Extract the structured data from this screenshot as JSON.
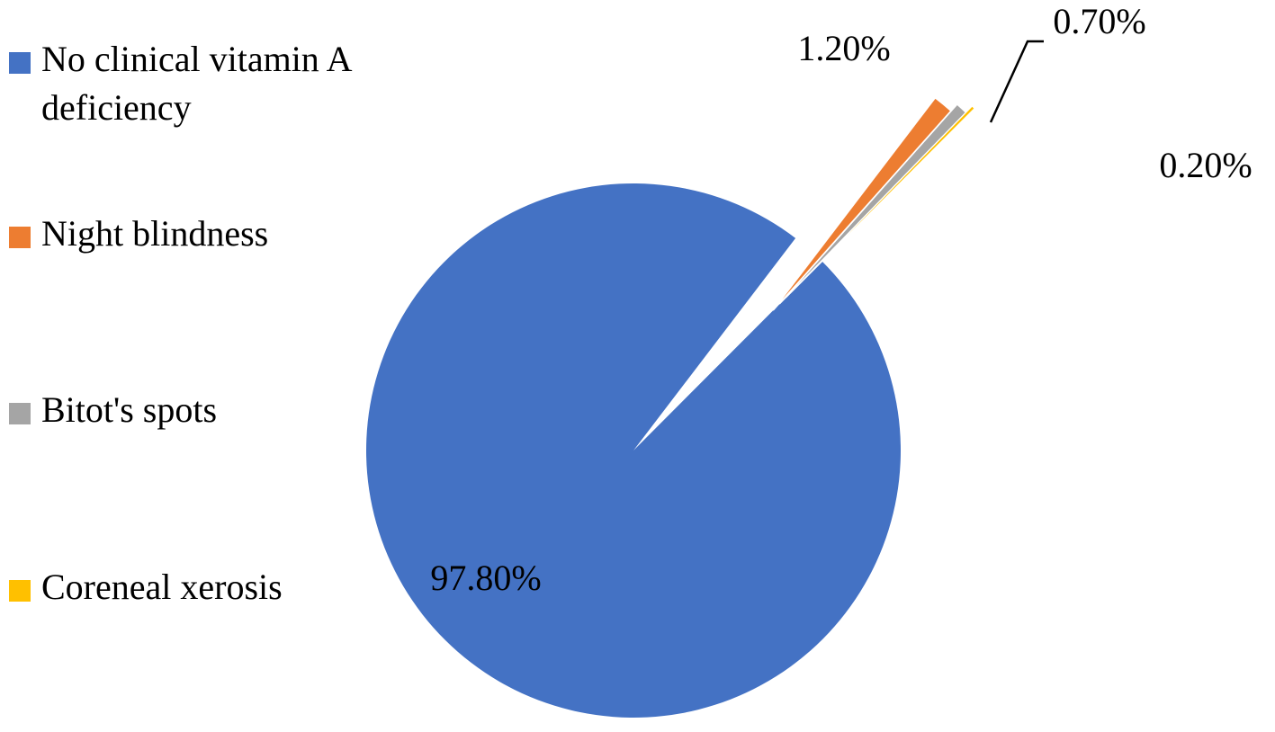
{
  "chart_data": {
    "type": "pie",
    "title": "",
    "legend_position": "left",
    "categories": [
      "No clinical vitamin A deficiency",
      "Night blindness",
      "Bitot's spots",
      "Coreneal xerosis"
    ],
    "values": [
      97.8,
      1.2,
      0.7,
      0.2
    ],
    "labels": [
      "97.80%",
      "1.20%",
      "0.70%",
      "0.20%"
    ],
    "colors": [
      "#4472C4",
      "#ED7D31",
      "#A5A5A5",
      "#FFC000"
    ]
  }
}
